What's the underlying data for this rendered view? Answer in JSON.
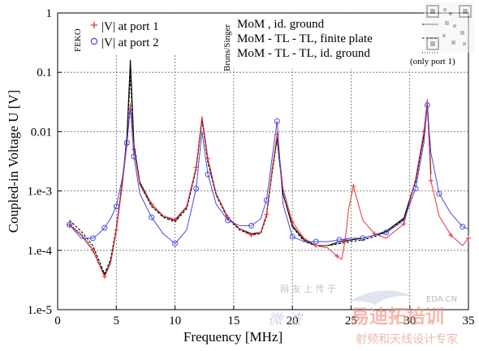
{
  "chart_data": {
    "type": "line",
    "xlabel": "Frequency [MHz]",
    "ylabel": "Coupled-in Voltage U   [V]",
    "xlim": [
      0,
      35
    ],
    "ylim": [
      1e-05,
      1
    ],
    "y_scale": "log",
    "grid": true,
    "x_ticks": [
      0,
      5,
      10,
      15,
      20,
      25,
      30,
      35
    ],
    "x_tick_labels": [
      "0",
      "5",
      "10",
      "15",
      "20",
      "25",
      "30",
      "35"
    ],
    "y_ticks": [
      1e-05,
      0.0001,
      0.001,
      0.01,
      0.1,
      1
    ],
    "y_tick_labels": [
      "1.e-5",
      "1.e-4",
      "1.e-3",
      "0.01",
      "0.1",
      "1"
    ],
    "legend_left_group_label": "FEKO",
    "legend_right_group_label": "Bruns/Singer",
    "legend_note": "(only port 1)",
    "series": [
      {
        "name": "|V| at port 1",
        "group": "FEKO",
        "color": "#e8323c",
        "marker": "plus",
        "x": [
          1,
          2,
          3,
          3.5,
          4,
          4.5,
          5,
          5.5,
          5.9,
          6.2,
          6.5,
          7,
          8,
          9,
          10,
          11,
          11.8,
          12.3,
          12.8,
          13.5,
          14.5,
          15.5,
          16.5,
          17.3,
          17.8,
          18.3,
          18.7,
          19.2,
          20,
          21,
          22,
          23,
          23.8,
          24.2,
          24.5,
          24.8,
          25.2,
          26,
          27,
          28,
          29.5,
          30.5,
          31.2,
          31.5,
          31.8,
          32.5,
          33.5,
          34.5,
          35
        ],
        "y": [
          0.00027,
          0.00018,
          0.0001,
          6e-05,
          3.6e-05,
          6e-05,
          0.00022,
          0.0012,
          0.006,
          0.03,
          0.005,
          0.0013,
          0.0006,
          0.00038,
          0.00033,
          0.00055,
          0.0025,
          0.018,
          0.0035,
          0.0009,
          0.00036,
          0.00023,
          0.00018,
          0.0002,
          0.0004,
          0.0025,
          0.009,
          0.0011,
          0.0003,
          0.00016,
          0.00012,
          0.00011,
          8e-05,
          7e-05,
          0.00015,
          0.0005,
          0.0012,
          0.00032,
          0.00019,
          0.00016,
          0.00028,
          0.0016,
          0.01,
          0.035,
          0.0015,
          0.00038,
          0.00018,
          0.00012,
          0.00016
        ]
      },
      {
        "name": "|V| at port 2",
        "group": "FEKO",
        "color": "#4a4adf",
        "marker": "circle",
        "x": [
          1,
          2,
          3,
          3.5,
          4,
          4.5,
          5,
          5.5,
          5.9,
          6.2,
          6.5,
          7,
          8,
          9,
          10,
          11,
          11.8,
          12.3,
          12.8,
          13.5,
          14.5,
          15.5,
          16.5,
          17.3,
          17.8,
          18.3,
          18.7,
          19.2,
          20,
          21,
          22,
          23,
          24,
          25,
          26,
          27,
          28,
          29.5,
          30.5,
          31.2,
          31.5,
          31.8,
          32.5,
          33.5,
          34.5,
          35
        ],
        "y": [
          0.00027,
          0.00016,
          0.00016,
          0.00019,
          0.00024,
          0.00034,
          0.00055,
          0.0016,
          0.0065,
          0.025,
          0.0038,
          0.0009,
          0.00036,
          0.00019,
          0.00013,
          0.00022,
          0.0011,
          0.01,
          0.0019,
          0.0006,
          0.00032,
          0.00026,
          0.00026,
          0.00034,
          0.0007,
          0.004,
          0.015,
          0.0006,
          0.00017,
          0.00014,
          0.00014,
          0.00014,
          0.00015,
          0.00016,
          0.00016,
          0.00018,
          0.0002,
          0.00032,
          0.0011,
          0.0065,
          0.028,
          0.0045,
          0.0009,
          0.00042,
          0.00025,
          0.00023
        ]
      },
      {
        "name": "MoM , id. ground",
        "group": "Bruns/Singer",
        "color": "#000000",
        "dash": "solid",
        "x": [
          1,
          2,
          3,
          3.5,
          4,
          4.5,
          5,
          5.5,
          5.9,
          6.2,
          6.5,
          7,
          8,
          9,
          10,
          11,
          11.8,
          12.3,
          12.8,
          13.5,
          14.5,
          15.5,
          16.5,
          17.3,
          17.8,
          18.3,
          18.7,
          19.2,
          20,
          21,
          22,
          23,
          24,
          25,
          26,
          27,
          28,
          29.5,
          30.5,
          31.2,
          31.5,
          31.8
        ],
        "y": [
          0.00027,
          0.00018,
          0.0001,
          6e-05,
          3.8e-05,
          6e-05,
          0.00022,
          0.0013,
          0.008,
          0.16,
          0.006,
          0.0014,
          0.0006,
          0.00038,
          0.00032,
          0.00055,
          0.0025,
          0.017,
          0.0034,
          0.0009,
          0.00036,
          0.00023,
          0.00019,
          0.0002,
          0.0004,
          0.0025,
          0.008,
          0.0009,
          0.00026,
          0.00015,
          0.00012,
          0.00012,
          0.00014,
          0.00015,
          0.00016,
          0.00018,
          0.00021,
          0.00035,
          0.0015,
          0.009,
          0.03,
          0.002
        ]
      },
      {
        "name": "MoM - TL - TL, finite plate",
        "group": "Bruns/Singer",
        "color": "#000000",
        "dash": "dashed",
        "x": [
          1,
          2,
          3,
          3.5,
          4,
          4.5,
          5,
          5.5,
          5.9,
          6.2,
          6.5,
          7,
          8,
          9,
          10,
          11,
          11.8,
          12.3,
          12.8,
          13.5,
          14.5,
          15.5,
          16.5,
          17.3,
          17.8,
          18.3,
          18.7,
          19.2,
          20,
          21,
          22,
          23,
          24,
          25,
          26,
          27,
          28,
          29.5,
          30.5,
          31.2,
          31.5,
          31.8
        ],
        "y": [
          0.00032,
          0.00021,
          0.00012,
          7e-05,
          4e-05,
          7e-05,
          0.00024,
          0.0014,
          0.0075,
          0.09,
          0.0055,
          0.0013,
          0.00055,
          0.00036,
          0.0003,
          0.0005,
          0.0023,
          0.016,
          0.003,
          0.00085,
          0.00034,
          0.00022,
          0.00018,
          0.00019,
          0.00037,
          0.0022,
          0.0075,
          0.0009,
          0.00025,
          0.00014,
          0.00012,
          0.00012,
          0.00013,
          0.00014,
          0.00015,
          0.00017,
          0.0002,
          0.00033,
          0.0014,
          0.0085,
          0.028,
          0.0019
        ]
      },
      {
        "name": "MoM - TL - TL, id. ground",
        "group": "Bruns/Singer",
        "color": "#000000",
        "dash": "dotted",
        "x": [
          1,
          2,
          3,
          3.5,
          4,
          4.5,
          5,
          5.5,
          5.9,
          6.2,
          6.5,
          7,
          8,
          9,
          10,
          11,
          11.8,
          12.3,
          12.8,
          13.5,
          14.5,
          15.5,
          16.5,
          17.3,
          17.8,
          18.3,
          18.7,
          19.2,
          20,
          21,
          22,
          23,
          24,
          25,
          26,
          27,
          28,
          29.5,
          30.5,
          31.2,
          31.5,
          31.8
        ],
        "y": [
          0.00028,
          0.00019,
          0.00011,
          6.5e-05,
          4e-05,
          6.5e-05,
          0.00023,
          0.0013,
          0.007,
          0.12,
          0.0055,
          0.0013,
          0.00056,
          0.00037,
          0.00031,
          0.00052,
          0.0024,
          0.016,
          0.0032,
          0.00088,
          0.00035,
          0.00023,
          0.00019,
          0.0002,
          0.00039,
          0.0024,
          0.0078,
          0.0009,
          0.00025,
          0.00015,
          0.00012,
          0.00012,
          0.00013,
          0.00015,
          0.00016,
          0.00018,
          0.0002,
          0.00034,
          0.0015,
          0.0088,
          0.029,
          0.002
        ]
      }
    ]
  },
  "watermark": {
    "text_cn_top": "网 友 上 传 于",
    "brand_cn": "易迪拓培训",
    "site": "EDA.CN",
    "slogan_cn": "射频和天线设计专家",
    "side_cn": "微 波"
  }
}
